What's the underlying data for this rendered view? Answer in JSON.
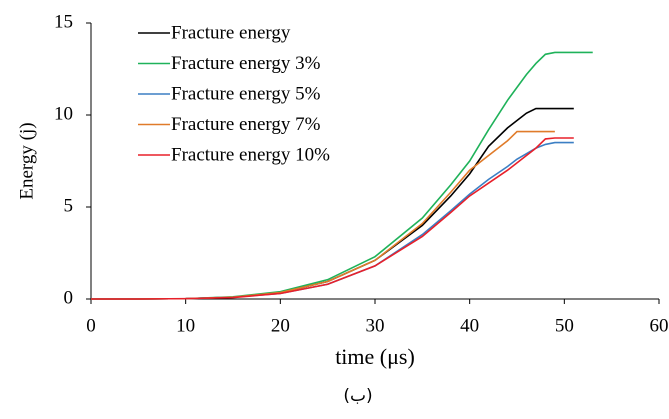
{
  "chart_data": {
    "type": "line",
    "x": [
      0,
      5,
      10,
      15,
      20,
      25,
      30,
      35,
      38,
      40,
      42,
      44,
      45,
      46,
      47,
      48,
      49,
      50,
      51,
      53
    ],
    "series": [
      {
        "name": "Fracture energy",
        "color": "#000000",
        "values": [
          0,
          0,
          0.02,
          0.1,
          0.35,
          0.95,
          2.1,
          4.0,
          5.6,
          6.8,
          8.3,
          9.3,
          9.7,
          10.1,
          10.35,
          10.35,
          10.35,
          10.35,
          10.35,
          null
        ]
      },
      {
        "name": "Fracture energy 3%",
        "color": "#1fb25a",
        "values": [
          0,
          0,
          0.02,
          0.12,
          0.4,
          1.05,
          2.3,
          4.4,
          6.2,
          7.5,
          9.2,
          10.8,
          11.5,
          12.2,
          12.8,
          13.3,
          13.4,
          13.4,
          13.4,
          13.4
        ]
      },
      {
        "name": "Fracture energy 5%",
        "color": "#3b7fc4",
        "values": [
          0,
          0,
          0.02,
          0.1,
          0.3,
          0.8,
          1.8,
          3.5,
          4.8,
          5.7,
          6.5,
          7.2,
          7.6,
          7.9,
          8.2,
          8.4,
          8.5,
          8.5,
          8.5,
          null
        ]
      },
      {
        "name": "Fracture energy 7%",
        "color": "#e07b2a",
        "values": [
          0,
          0,
          0.02,
          0.1,
          0.35,
          0.95,
          2.1,
          4.1,
          5.8,
          7.0,
          7.8,
          8.6,
          9.1,
          9.1,
          9.1,
          9.1,
          9.1,
          null,
          null,
          null
        ]
      },
      {
        "name": "Fracture energy 10%",
        "color": "#e8202a",
        "values": [
          0,
          0,
          0.02,
          0.08,
          0.3,
          0.8,
          1.8,
          3.4,
          4.7,
          5.6,
          6.3,
          7.0,
          7.4,
          7.8,
          8.2,
          8.7,
          8.75,
          8.75,
          8.75,
          null
        ]
      }
    ],
    "x_label": "time  (μs)",
    "y_label": "Energy  (j)",
    "caption": "(ب)",
    "xlim": [
      0,
      60
    ],
    "xticks": [
      0,
      10,
      20,
      30,
      40,
      50,
      60
    ],
    "ylim": [
      0,
      15
    ],
    "yticks": [
      0,
      5,
      10,
      15
    ],
    "grid": false
  }
}
